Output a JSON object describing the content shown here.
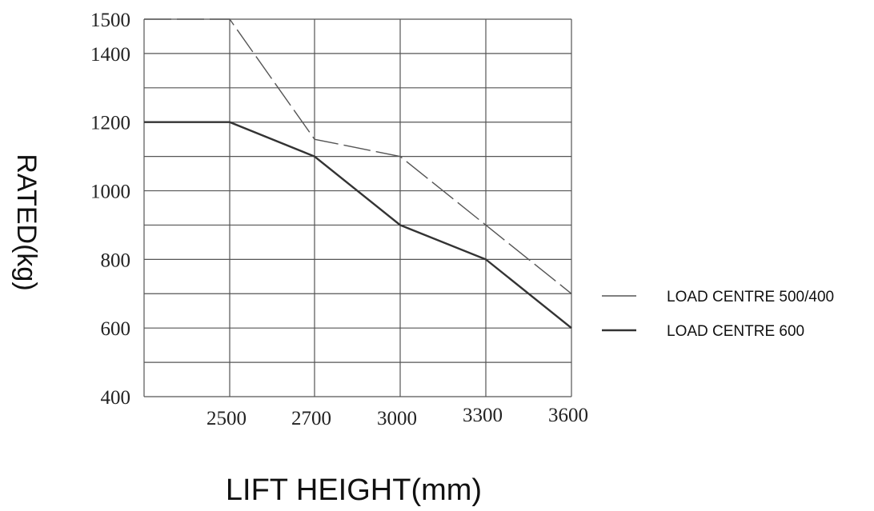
{
  "chart_data": {
    "type": "line",
    "xlabel": "LIFT HEIGHT(mm)",
    "ylabel": "RATED(kg)",
    "x_tick_labels": [
      "2500",
      "2700",
      "3000",
      "3300",
      "3600"
    ],
    "y_tick_labels": [
      "400",
      "600",
      "800",
      "1000",
      "1200",
      "1400",
      "1500"
    ],
    "x_categories": [
      "",
      "2500",
      "2700",
      "3000",
      "3300",
      "3600"
    ],
    "ylim": [
      400,
      1500
    ],
    "grid": true,
    "legend_position": "right",
    "series": [
      {
        "name": "LOAD CENTRE 500/400",
        "style": "dashed",
        "color": "#555555",
        "values": [
          1500,
          1500,
          1150,
          1100,
          900,
          700
        ]
      },
      {
        "name": "LOAD CENTRE 600",
        "style": "solid",
        "color": "#333333",
        "values": [
          1200,
          1200,
          1100,
          900,
          800,
          600
        ]
      }
    ]
  }
}
